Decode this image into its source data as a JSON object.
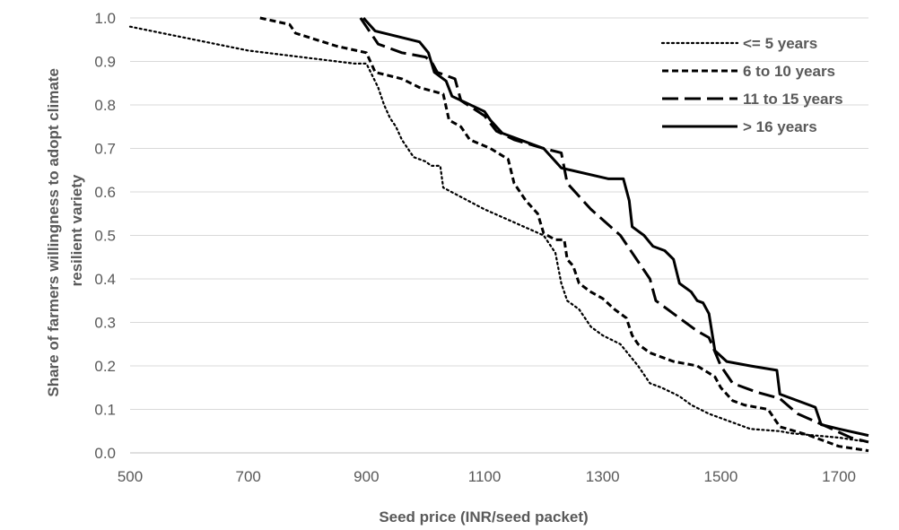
{
  "chart_data": {
    "type": "line",
    "title": "",
    "xlabel": "Seed price (INR/seed packet)",
    "ylabel_lines": [
      "Share of farmers willingness to adopt climate",
      "resilient variety"
    ],
    "xlim": [
      500,
      1750
    ],
    "ylim": [
      0,
      1
    ],
    "x_ticks": [
      500,
      700,
      900,
      1100,
      1300,
      1500,
      1700
    ],
    "y_ticks": [
      0.0,
      0.1,
      0.2,
      0.3,
      0.4,
      0.5,
      0.6,
      0.7,
      0.8,
      0.9,
      1.0
    ],
    "y_tick_labels": [
      "0.0",
      "0.1",
      "0.2",
      "0.3",
      "0.4",
      "0.5",
      "0.6",
      "0.7",
      "0.8",
      "0.9",
      "1.0"
    ],
    "grid": "horizontal",
    "legend_position": "top-right",
    "series": [
      {
        "name": "<= 5 years",
        "dash": "dotted",
        "color": "#000000",
        "points": [
          [
            500,
            0.98
          ],
          [
            700,
            0.925
          ],
          [
            880,
            0.895
          ],
          [
            900,
            0.895
          ],
          [
            920,
            0.84
          ],
          [
            930,
            0.8
          ],
          [
            940,
            0.77
          ],
          [
            950,
            0.75
          ],
          [
            960,
            0.72
          ],
          [
            980,
            0.68
          ],
          [
            1000,
            0.67
          ],
          [
            1010,
            0.66
          ],
          [
            1025,
            0.66
          ],
          [
            1030,
            0.61
          ],
          [
            1100,
            0.56
          ],
          [
            1200,
            0.5
          ],
          [
            1220,
            0.46
          ],
          [
            1230,
            0.39
          ],
          [
            1240,
            0.35
          ],
          [
            1260,
            0.33
          ],
          [
            1280,
            0.29
          ],
          [
            1300,
            0.27
          ],
          [
            1330,
            0.25
          ],
          [
            1360,
            0.2
          ],
          [
            1380,
            0.16
          ],
          [
            1400,
            0.15
          ],
          [
            1430,
            0.13
          ],
          [
            1450,
            0.11
          ],
          [
            1480,
            0.09
          ],
          [
            1550,
            0.055
          ],
          [
            1600,
            0.05
          ],
          [
            1620,
            0.045
          ],
          [
            1700,
            0.035
          ],
          [
            1750,
            0.025
          ]
        ]
      },
      {
        "name": "6 to 10 years",
        "dash": "short-dash",
        "color": "#000000",
        "points": [
          [
            720,
            1.0
          ],
          [
            770,
            0.985
          ],
          [
            780,
            0.965
          ],
          [
            850,
            0.935
          ],
          [
            900,
            0.92
          ],
          [
            915,
            0.875
          ],
          [
            960,
            0.86
          ],
          [
            990,
            0.84
          ],
          [
            1030,
            0.825
          ],
          [
            1040,
            0.765
          ],
          [
            1060,
            0.75
          ],
          [
            1075,
            0.72
          ],
          [
            1110,
            0.7
          ],
          [
            1140,
            0.675
          ],
          [
            1150,
            0.62
          ],
          [
            1170,
            0.58
          ],
          [
            1190,
            0.55
          ],
          [
            1200,
            0.505
          ],
          [
            1220,
            0.49
          ],
          [
            1235,
            0.49
          ],
          [
            1240,
            0.445
          ],
          [
            1250,
            0.43
          ],
          [
            1260,
            0.39
          ],
          [
            1280,
            0.37
          ],
          [
            1300,
            0.355
          ],
          [
            1320,
            0.33
          ],
          [
            1340,
            0.31
          ],
          [
            1350,
            0.27
          ],
          [
            1360,
            0.25
          ],
          [
            1380,
            0.23
          ],
          [
            1420,
            0.21
          ],
          [
            1460,
            0.2
          ],
          [
            1490,
            0.175
          ],
          [
            1500,
            0.15
          ],
          [
            1520,
            0.12
          ],
          [
            1540,
            0.11
          ],
          [
            1580,
            0.1
          ],
          [
            1600,
            0.06
          ],
          [
            1650,
            0.04
          ],
          [
            1700,
            0.015
          ],
          [
            1750,
            0.005
          ]
        ]
      },
      {
        "name": "11 to 15 years",
        "dash": "long-dash",
        "color": "#000000",
        "points": [
          [
            890,
            1.0
          ],
          [
            920,
            0.94
          ],
          [
            960,
            0.92
          ],
          [
            1000,
            0.91
          ],
          [
            1010,
            0.9
          ],
          [
            1020,
            0.875
          ],
          [
            1050,
            0.86
          ],
          [
            1060,
            0.81
          ],
          [
            1100,
            0.775
          ],
          [
            1120,
            0.74
          ],
          [
            1150,
            0.72
          ],
          [
            1200,
            0.7
          ],
          [
            1230,
            0.69
          ],
          [
            1240,
            0.62
          ],
          [
            1280,
            0.56
          ],
          [
            1330,
            0.5
          ],
          [
            1360,
            0.44
          ],
          [
            1380,
            0.4
          ],
          [
            1390,
            0.35
          ],
          [
            1420,
            0.32
          ],
          [
            1460,
            0.28
          ],
          [
            1480,
            0.265
          ],
          [
            1500,
            0.2
          ],
          [
            1520,
            0.16
          ],
          [
            1560,
            0.14
          ],
          [
            1600,
            0.125
          ],
          [
            1630,
            0.09
          ],
          [
            1680,
            0.06
          ],
          [
            1720,
            0.035
          ],
          [
            1750,
            0.025
          ]
        ]
      },
      {
        "name": "> 16 years",
        "dash": "solid",
        "color": "#000000",
        "points": [
          [
            895,
            1.0
          ],
          [
            915,
            0.97
          ],
          [
            990,
            0.945
          ],
          [
            1005,
            0.92
          ],
          [
            1015,
            0.875
          ],
          [
            1035,
            0.855
          ],
          [
            1045,
            0.82
          ],
          [
            1100,
            0.785
          ],
          [
            1110,
            0.765
          ],
          [
            1130,
            0.735
          ],
          [
            1180,
            0.71
          ],
          [
            1200,
            0.7
          ],
          [
            1230,
            0.655
          ],
          [
            1310,
            0.63
          ],
          [
            1335,
            0.63
          ],
          [
            1345,
            0.58
          ],
          [
            1350,
            0.52
          ],
          [
            1370,
            0.5
          ],
          [
            1385,
            0.475
          ],
          [
            1405,
            0.465
          ],
          [
            1420,
            0.445
          ],
          [
            1430,
            0.39
          ],
          [
            1450,
            0.37
          ],
          [
            1460,
            0.35
          ],
          [
            1470,
            0.345
          ],
          [
            1480,
            0.32
          ],
          [
            1490,
            0.235
          ],
          [
            1510,
            0.21
          ],
          [
            1550,
            0.2
          ],
          [
            1595,
            0.19
          ],
          [
            1600,
            0.135
          ],
          [
            1620,
            0.125
          ],
          [
            1660,
            0.105
          ],
          [
            1670,
            0.065
          ],
          [
            1700,
            0.055
          ],
          [
            1750,
            0.04
          ]
        ]
      }
    ]
  }
}
